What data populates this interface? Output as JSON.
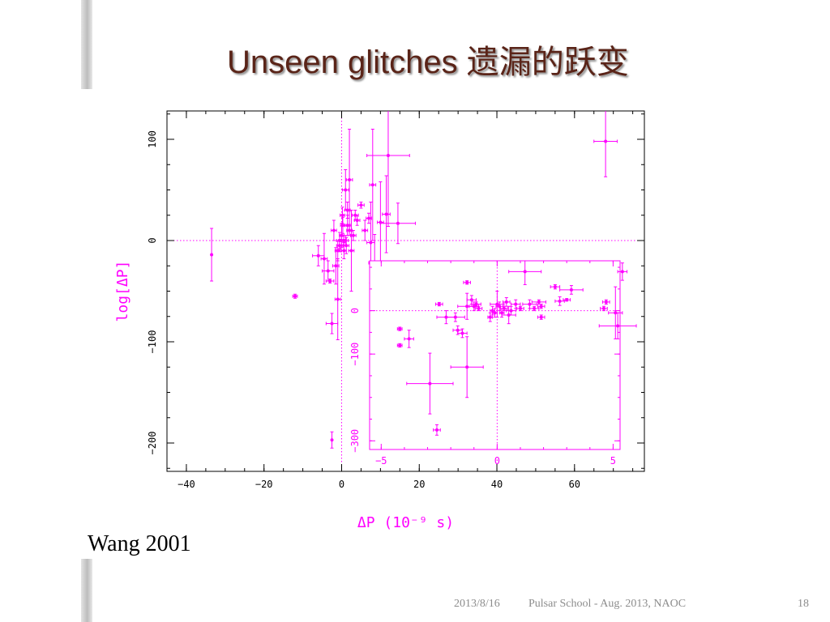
{
  "slide": {
    "title": "Unseen glitches 遗漏的跃变",
    "attribution": "Wang 2001",
    "footer_date": "2013/8/16",
    "footer_event": "Pulsar School  - Aug. 2013, NAOC",
    "page_number": "18"
  },
  "colors": {
    "data": "#ff00ff",
    "axis": "#000000",
    "title": "#5a2418",
    "footer": "#8c8c8c"
  },
  "chart_data": [
    {
      "type": "scatter",
      "title": "",
      "xlabel": "ΔP (10⁻⁹ s)",
      "ylabel": "log[ΔP]",
      "xlim": [
        -45,
        78
      ],
      "ylim": [
        -228,
        128
      ],
      "xticks": [
        -40,
        -20,
        0,
        20,
        40,
        60
      ],
      "yticks": [
        -200,
        -100,
        0,
        100
      ],
      "reference_lines": {
        "x": 0,
        "y": 0
      },
      "points": [
        {
          "x": -33.5,
          "y": -14,
          "yerr": 26
        },
        {
          "x": -12,
          "y": -55,
          "xerr": 0.6,
          "yerr": 2
        },
        {
          "x": -6,
          "y": -15,
          "xerr": 1.5,
          "yerr": 10
        },
        {
          "x": -4.5,
          "y": -18,
          "xerr": 0.8,
          "yerr": 25
        },
        {
          "x": -3.5,
          "y": -30,
          "xerr": 1.5,
          "yerr": 10
        },
        {
          "x": -2.5,
          "y": -82,
          "xerr": 1.5,
          "yerr": 10
        },
        {
          "x": -2.5,
          "y": -197,
          "yerr": 8
        },
        {
          "x": -3,
          "y": -40,
          "xerr": 1,
          "yerr": 2
        },
        {
          "x": -2,
          "y": 10,
          "xerr": 0.7,
          "yerr": 10
        },
        {
          "x": -1.5,
          "y": -25,
          "xerr": 0.8,
          "yerr": 18
        },
        {
          "x": -1,
          "y": -10,
          "xerr": 0.7,
          "yerr": 10
        },
        {
          "x": -1,
          "y": -58,
          "xerr": 0.7,
          "yerr": 40
        },
        {
          "x": -0.5,
          "y": 0,
          "xerr": 0.8,
          "yerr": 8
        },
        {
          "x": -0.5,
          "y": -5,
          "xerr": 0.8,
          "yerr": 6
        },
        {
          "x": 0,
          "y": 5,
          "xerr": 0.6,
          "yerr": 12
        },
        {
          "x": 0.2,
          "y": 25,
          "xerr": 0.6,
          "yerr": 8
        },
        {
          "x": 0.3,
          "y": 15,
          "xerr": 0.6,
          "yerr": 8
        },
        {
          "x": 0.5,
          "y": 0,
          "xerr": 0.6,
          "yerr": 5
        },
        {
          "x": 0.6,
          "y": -10,
          "xerr": 0.6,
          "yerr": 8
        },
        {
          "x": 1,
          "y": 50,
          "xerr": 0.8,
          "yerr": 20
        },
        {
          "x": 1,
          "y": 0,
          "xerr": 0.7,
          "yerr": 5
        },
        {
          "x": 1.2,
          "y": -5,
          "xerr": 0.7,
          "yerr": 8
        },
        {
          "x": 1.5,
          "y": 15,
          "xerr": 0.7,
          "yerr": 10
        },
        {
          "x": 1.5,
          "y": 30,
          "xerr": 0.7,
          "yerr": 8
        },
        {
          "x": 2,
          "y": 60,
          "xerr": 0.8,
          "yerr": 50
        },
        {
          "x": 2,
          "y": 10,
          "xerr": 0.7,
          "yerr": 5
        },
        {
          "x": 2.5,
          "y": -10,
          "xerr": 0.7,
          "yerr": 40
        },
        {
          "x": 3,
          "y": 5,
          "xerr": 0.7,
          "yerr": 5
        },
        {
          "x": 3.5,
          "y": 25,
          "xerr": 0.8,
          "yerr": 5
        },
        {
          "x": 4,
          "y": 20,
          "xerr": 0.7,
          "yerr": 5
        },
        {
          "x": 5,
          "y": 35,
          "xerr": 0.8,
          "yerr": 3
        },
        {
          "x": 6,
          "y": 10,
          "xerr": 0.7,
          "yerr": 10
        },
        {
          "x": 7,
          "y": 22,
          "xerr": 0.7,
          "yerr": 5
        },
        {
          "x": 7.5,
          "y": -2,
          "xerr": 1,
          "yerr": 40
        },
        {
          "x": 8,
          "y": 55,
          "xerr": 0.8,
          "yerr": 55
        },
        {
          "x": 8.5,
          "y": -22,
          "xerr": 1.5,
          "yerr": 28
        },
        {
          "x": 10,
          "y": 18,
          "xerr": 0.8,
          "yerr": 40
        },
        {
          "x": 11.5,
          "y": 26,
          "xerr": 1,
          "yerr": 38
        },
        {
          "x": 12,
          "y": 84,
          "xerr": 5.5,
          "yerr": 70
        },
        {
          "x": 14.5,
          "y": 17,
          "xerr": 4.5,
          "yerr": 20
        },
        {
          "x": 68,
          "y": 98,
          "xerr": 3,
          "yerr": 35
        }
      ]
    },
    {
      "type": "scatter",
      "title": "",
      "xlabel": "",
      "ylabel": "",
      "xlim": [
        -5.5,
        5.3
      ],
      "ylim": [
        -320,
        115
      ],
      "xticks": [
        -5,
        0,
        5
      ],
      "yticks": [
        -300,
        -100,
        0
      ],
      "reference_lines": {
        "x": 0,
        "y": 0
      },
      "points": [
        {
          "x": -4.2,
          "y": -42,
          "xerr": 0.1,
          "yerr": 4
        },
        {
          "x": -4.2,
          "y": -80,
          "xerr": 0.1,
          "yerr": 4
        },
        {
          "x": -3.8,
          "y": -65,
          "xerr": 0.2,
          "yerr": 20
        },
        {
          "x": -2.9,
          "y": -168,
          "xerr": 1,
          "yerr": 70
        },
        {
          "x": -2.6,
          "y": -275,
          "xerr": 0.15,
          "yerr": 12
        },
        {
          "x": -2.5,
          "y": 15,
          "xerr": 0.15,
          "yerr": 4
        },
        {
          "x": -2.2,
          "y": -15,
          "xerr": 0.4,
          "yerr": 15
        },
        {
          "x": -1.8,
          "y": -15,
          "xerr": 0.4,
          "yerr": 10
        },
        {
          "x": -1.7,
          "y": -45,
          "xerr": 0.2,
          "yerr": 10
        },
        {
          "x": -1.5,
          "y": -52,
          "xerr": 0.2,
          "yerr": 10
        },
        {
          "x": -1.3,
          "y": -130,
          "xerr": 0.7,
          "yerr": 70
        },
        {
          "x": -1.3,
          "y": 10,
          "xerr": 0.4,
          "yerr": 30
        },
        {
          "x": -1.3,
          "y": 65,
          "xerr": 0.15,
          "yerr": 4
        },
        {
          "x": -1.1,
          "y": 25,
          "xerr": 0.2,
          "yerr": 10
        },
        {
          "x": -1,
          "y": 10,
          "xerr": 0.2,
          "yerr": 10
        },
        {
          "x": -0.9,
          "y": 15,
          "xerr": 0.2,
          "yerr": 5
        },
        {
          "x": -0.8,
          "y": 5,
          "xerr": 0.15,
          "yerr": 5
        },
        {
          "x": -0.3,
          "y": -15,
          "xerr": 0.1,
          "yerr": 10
        },
        {
          "x": -0.2,
          "y": 0,
          "xerr": 0.1,
          "yerr": 10
        },
        {
          "x": -0.1,
          "y": -5,
          "xerr": 0.1,
          "yerr": 10
        },
        {
          "x": 0,
          "y": 15,
          "xerr": 0.3,
          "yerr": 30
        },
        {
          "x": 0.1,
          "y": 10,
          "xerr": 0.15,
          "yerr": 10
        },
        {
          "x": 0.2,
          "y": -5,
          "xerr": 0.1,
          "yerr": 10
        },
        {
          "x": 0.3,
          "y": 5,
          "xerr": 0.15,
          "yerr": 5
        },
        {
          "x": 0.4,
          "y": 20,
          "xerr": 0.15,
          "yerr": 10
        },
        {
          "x": 0.5,
          "y": -10,
          "xerr": 0.3,
          "yerr": 20
        },
        {
          "x": 0.6,
          "y": 0,
          "xerr": 0.2,
          "yerr": 10
        },
        {
          "x": 0.8,
          "y": 15,
          "xerr": 0.2,
          "yerr": 10
        },
        {
          "x": 1,
          "y": 5,
          "xerr": 0.15,
          "yerr": 5
        },
        {
          "x": 1.2,
          "y": 90,
          "xerr": 0.7,
          "yerr": 30
        },
        {
          "x": 1.4,
          "y": 15,
          "xerr": 0.3,
          "yerr": 10
        },
        {
          "x": 1.6,
          "y": 5,
          "xerr": 0.2,
          "yerr": 5
        },
        {
          "x": 1.8,
          "y": 20,
          "xerr": 0.3,
          "yerr": 5
        },
        {
          "x": 1.9,
          "y": 10,
          "xerr": 0.15,
          "yerr": 5
        },
        {
          "x": 1.9,
          "y": -15,
          "xerr": 0.15,
          "yerr": 5
        },
        {
          "x": 2.5,
          "y": 55,
          "xerr": 0.2,
          "yerr": 5
        },
        {
          "x": 2.7,
          "y": 22,
          "xerr": 0.2,
          "yerr": 10
        },
        {
          "x": 3,
          "y": 25,
          "xerr": 0.15,
          "yerr": 3
        },
        {
          "x": 3.2,
          "y": 48,
          "xerr": 0.5,
          "yerr": 10
        },
        {
          "x": 4.6,
          "y": 5,
          "xerr": 0.15,
          "yerr": 5
        },
        {
          "x": 4.7,
          "y": 20,
          "xerr": 0.15,
          "yerr": 5
        },
        {
          "x": 5.1,
          "y": -5,
          "xerr": 0.3,
          "yerr": 60
        },
        {
          "x": 5.2,
          "y": -35,
          "xerr": 0.8,
          "yerr": 30
        },
        {
          "x": 5.4,
          "y": 90,
          "xerr": 0.2,
          "yerr": 20
        }
      ]
    }
  ]
}
